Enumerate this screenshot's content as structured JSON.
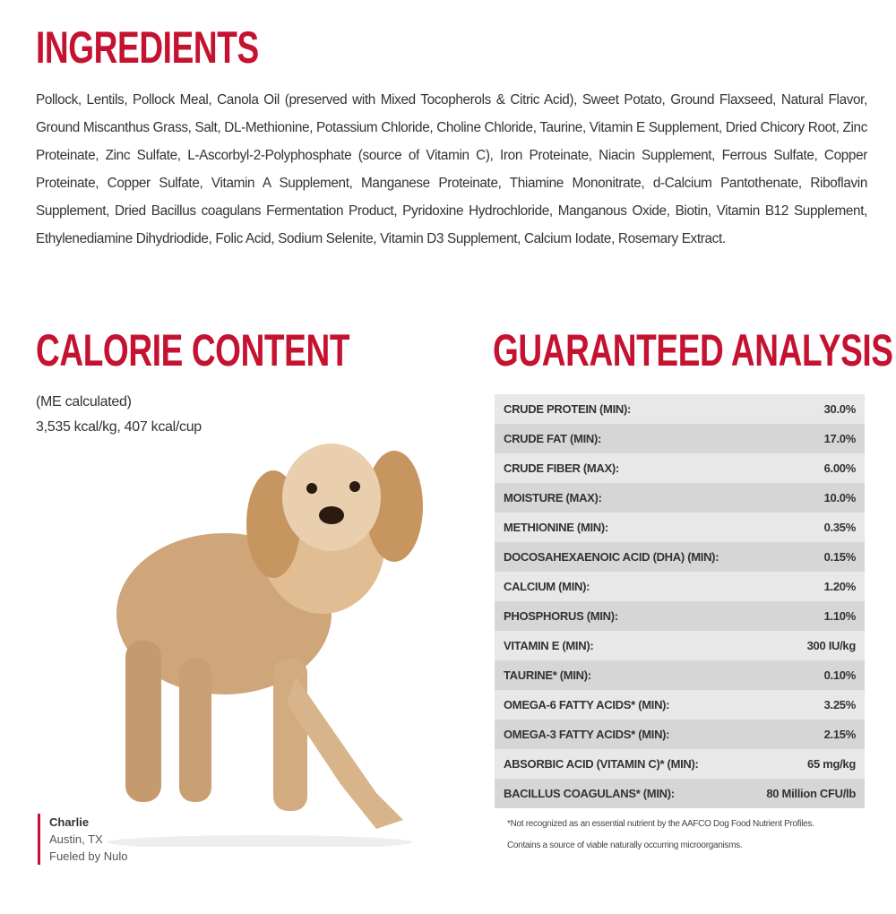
{
  "ingredients": {
    "title": "INGREDIENTS",
    "text": "Pollock, Lentils, Pollock Meal, Canola Oil (preserved with Mixed Tocopherols & Citric Acid), Sweet Potato, Ground Flaxseed, Natural Flavor, Ground Miscanthus Grass, Salt, DL-Methionine, Potassium Chloride, Choline Chloride, Taurine, Vitamin E Supplement, Dried Chicory Root, Zinc Proteinate, Zinc Sulfate, L-Ascorbyl-2-Polyphosphate (source of Vitamin C), Iron Proteinate, Niacin Supplement, Ferrous Sulfate, Copper Proteinate, Copper Sulfate, Vitamin A Supplement, Manganese Proteinate, Thiamine Mononitrate, d-Calcium Pantothenate, Riboflavin Supplement, Dried Bacillus coagulans Fermentation Product, Pyridoxine Hydrochloride, Manganous Oxide, Biotin, Vitamin B12 Supplement, Ethylenediamine Dihydriodide, Folic Acid, Sodium Selenite, Vitamin D3 Supplement, Calcium Iodate, Rosemary Extract."
  },
  "calorie_content": {
    "title": "CALORIE CONTENT",
    "lines": [
      "(ME calculated)",
      "3,535 kcal/kg, 407 kcal/cup"
    ]
  },
  "caption": {
    "name": "Charlie",
    "location": "Austin, TX",
    "tagline": "Fueled by Nulo"
  },
  "guaranteed_analysis": {
    "title": "GUARANTEED ANALYSIS",
    "rows": [
      [
        "CRUDE PROTEIN (MIN):",
        "30.0%"
      ],
      [
        "CRUDE FAT (MIN):",
        "17.0%"
      ],
      [
        "CRUDE FIBER (MAX):",
        "6.00%"
      ],
      [
        "MOISTURE (MAX):",
        "10.0%"
      ],
      [
        "METHIONINE (MIN):",
        "0.35%"
      ],
      [
        "DOCOSAHEXAENOIC ACID (DHA) (MIN):",
        "0.15%"
      ],
      [
        "CALCIUM (MIN):",
        "1.20%"
      ],
      [
        "PHOSPHORUS (MIN):",
        "1.10%"
      ],
      [
        "VITAMIN E (MIN):",
        "300 IU/kg"
      ],
      [
        "TAURINE* (MIN):",
        "0.10%"
      ],
      [
        "OMEGA-6 FATTY ACIDS* (MIN):",
        "3.25%"
      ],
      [
        "OMEGA-3 FATTY ACIDS* (MIN):",
        "2.15%"
      ],
      [
        "ABSORBIC ACID (VITAMIN C)* (MIN):",
        "65 mg/kg"
      ],
      [
        "BACILLUS COAGULANS* (MIN):",
        "80 Million CFU/lb"
      ]
    ],
    "footnotes": [
      "*Not recognized as an essential nutrient by the AAFCO Dog Food Nutrient Profiles.",
      "Contains a source of viable naturally occurring microorganisms."
    ]
  }
}
